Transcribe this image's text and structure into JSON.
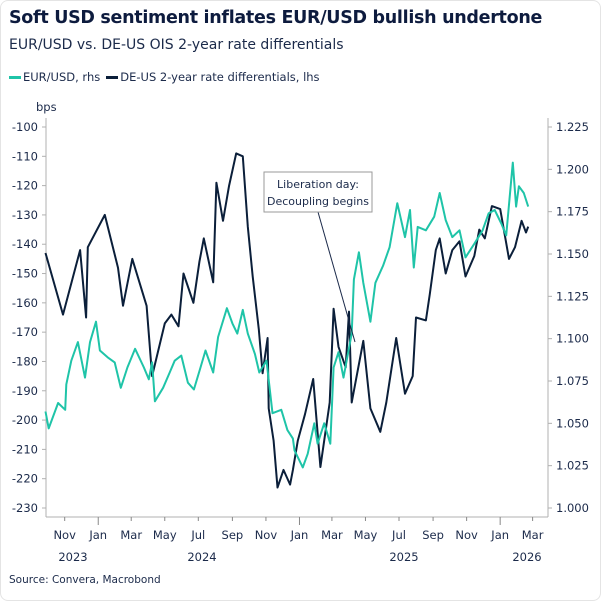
{
  "title": "Soft USD sentiment inflates EUR/USD bullish undertone",
  "subtitle": "EUR/USD vs. DE-US OIS 2-year rate differentials",
  "source": "Source: Convera, Macrobond",
  "colors": {
    "eurusd": "#1fc4a8",
    "diff": "#0b1f3a",
    "axis": "#b0b0b0"
  },
  "chart_data": {
    "type": "line",
    "title": "Soft USD sentiment inflates EUR/USD bullish undertone",
    "subtitle": "EUR/USD vs. DE-US OIS 2-year rate differentials",
    "legend_position": "top-left",
    "grid": false,
    "left_axis": {
      "unit_label": "bps",
      "ylim": [
        -230,
        -100
      ],
      "ticks": [
        "-100",
        "-110",
        "-120",
        "-130",
        "-140",
        "-150",
        "-160",
        "-170",
        "-180",
        "-190",
        "-200",
        "-210",
        "-220",
        "-230"
      ]
    },
    "right_axis": {
      "ylim": [
        1.0,
        1.225
      ],
      "ticks": [
        "1.225",
        "1.200",
        "1.175",
        "1.150",
        "1.125",
        "1.100",
        "1.075",
        "1.050",
        "1.025",
        "1.000"
      ]
    },
    "xlim": [
      "2023-09-28",
      "2026-03-29"
    ],
    "x_ticks": [
      {
        "date": "2023-11-01",
        "label": "Nov"
      },
      {
        "date": "2024-01-01",
        "label": "Jan"
      },
      {
        "date": "2024-03-01",
        "label": "Mar"
      },
      {
        "date": "2024-05-01",
        "label": "May"
      },
      {
        "date": "2024-07-01",
        "label": "Jul"
      },
      {
        "date": "2024-09-01",
        "label": "Sep"
      },
      {
        "date": "2024-11-01",
        "label": "Nov"
      },
      {
        "date": "2025-01-01",
        "label": "Jan"
      },
      {
        "date": "2025-03-01",
        "label": "Mar"
      },
      {
        "date": "2025-05-01",
        "label": "May"
      },
      {
        "date": "2025-07-01",
        "label": "Jul"
      },
      {
        "date": "2025-09-01",
        "label": "Sep"
      },
      {
        "date": "2025-11-01",
        "label": "Nov"
      },
      {
        "date": "2026-01-01",
        "label": "Jan"
      },
      {
        "date": "2026-03-01",
        "label": "Mar"
      }
    ],
    "year_labels": [
      "2023",
      "2024",
      "2025",
      "2026"
    ],
    "annotation": {
      "lines": [
        "Liberation day:",
        "Decoupling begins"
      ],
      "date": "2025-04-02"
    },
    "series": [
      {
        "name": "EUR/USD, rhs",
        "axis": "right",
        "x": [
          "2023-09-27",
          "2023-10-03",
          "2023-10-20",
          "2023-11-02",
          "2023-11-04",
          "2023-11-13",
          "2023-11-25",
          "2023-12-08",
          "2023-12-17",
          "2023-12-28",
          "2024-01-04",
          "2024-01-18",
          "2024-01-31",
          "2024-02-11",
          "2024-02-23",
          "2024-03-08",
          "2024-03-24",
          "2024-04-02",
          "2024-04-08",
          "2024-04-13",
          "2024-04-28",
          "2024-05-10",
          "2024-05-19",
          "2024-05-31",
          "2024-06-12",
          "2024-06-23",
          "2024-07-05",
          "2024-07-14",
          "2024-07-28",
          "2024-08-06",
          "2024-08-22",
          "2024-09-01",
          "2024-09-10",
          "2024-09-20",
          "2024-09-29",
          "2024-10-12",
          "2024-10-20",
          "2024-11-02",
          "2024-11-08",
          "2024-11-13",
          "2024-11-29",
          "2024-12-10",
          "2024-12-20",
          "2024-12-23",
          "2025-01-07",
          "2025-01-16",
          "2025-01-28",
          "2025-02-03",
          "2025-02-15",
          "2025-02-26",
          "2025-03-04",
          "2025-03-13",
          "2025-03-22",
          "2025-04-06",
          "2025-04-10",
          "2025-04-19",
          "2025-04-27",
          "2025-05-10",
          "2025-05-19",
          "2025-06-02",
          "2025-06-14",
          "2025-06-28",
          "2025-07-12",
          "2025-07-21",
          "2025-07-28",
          "2025-08-04",
          "2025-08-19",
          "2025-09-03",
          "2025-09-13",
          "2025-09-24",
          "2025-10-06",
          "2025-10-19",
          "2025-10-30",
          "2025-11-15",
          "2025-11-30",
          "2025-12-11",
          "2025-12-22",
          "2026-01-03",
          "2026-01-12",
          "2026-01-24",
          "2026-01-30",
          "2026-02-04",
          "2026-02-13",
          "2026-02-21"
        ],
        "values": [
          1.057,
          1.047,
          1.062,
          1.058,
          1.073,
          1.087,
          1.098,
          1.077,
          1.098,
          1.11,
          1.093,
          1.089,
          1.086,
          1.071,
          1.083,
          1.094,
          1.083,
          1.076,
          1.086,
          1.063,
          1.071,
          1.08,
          1.087,
          1.09,
          1.074,
          1.07,
          1.083,
          1.093,
          1.08,
          1.101,
          1.118,
          1.109,
          1.103,
          1.117,
          1.103,
          1.091,
          1.08,
          1.087,
          1.07,
          1.056,
          1.058,
          1.046,
          1.041,
          1.034,
          1.024,
          1.032,
          1.05,
          1.038,
          1.05,
          1.038,
          1.083,
          1.092,
          1.077,
          1.103,
          1.135,
          1.151,
          1.133,
          1.11,
          1.133,
          1.143,
          1.154,
          1.18,
          1.16,
          1.176,
          1.142,
          1.166,
          1.164,
          1.172,
          1.186,
          1.17,
          1.16,
          1.164,
          1.148,
          1.156,
          1.164,
          1.174,
          1.176,
          1.168,
          1.161,
          1.204,
          1.178,
          1.19,
          1.186,
          1.178
        ]
      },
      {
        "name": "DE-US 2-year rate differentials, lhs",
        "axis": "left",
        "x": [
          "2023-09-27",
          "2023-10-29",
          "2023-11-29",
          "2023-12-10",
          "2023-12-13",
          "2024-01-13",
          "2024-02-06",
          "2024-02-15",
          "2024-03-03",
          "2024-03-29",
          "2024-04-08",
          "2024-05-01",
          "2024-05-13",
          "2024-05-26",
          "2024-06-04",
          "2024-06-22",
          "2024-07-03",
          "2024-07-11",
          "2024-07-28",
          "2024-08-03",
          "2024-08-15",
          "2024-08-26",
          "2024-09-08",
          "2024-09-20",
          "2024-09-29",
          "2024-10-08",
          "2024-10-19",
          "2024-10-26",
          "2024-11-04",
          "2024-11-06",
          "2024-11-15",
          "2024-11-22",
          "2024-12-03",
          "2024-12-15",
          "2024-12-20",
          "2024-12-29",
          "2025-01-11",
          "2025-01-26",
          "2025-02-08",
          "2025-02-25",
          "2025-03-04",
          "2025-03-13",
          "2025-03-26",
          "2025-04-01",
          "2025-04-06",
          "2025-04-27",
          "2025-05-10",
          "2025-05-28",
          "2025-06-08",
          "2025-06-26",
          "2025-07-12",
          "2025-07-26",
          "2025-08-01",
          "2025-08-19",
          "2025-08-26",
          "2025-09-06",
          "2025-09-13",
          "2025-09-24",
          "2025-10-06",
          "2025-10-19",
          "2025-10-30",
          "2025-11-15",
          "2025-11-24",
          "2025-12-04",
          "2025-12-17",
          "2026-01-01",
          "2026-01-17",
          "2026-01-28",
          "2026-02-09",
          "2026-02-17",
          "2026-02-21"
        ],
        "values": [
          -143,
          -164,
          -142,
          -165,
          -141,
          -130,
          -148,
          -161,
          -145,
          -161,
          -185,
          -167,
          -164,
          -168,
          -150,
          -160,
          -146,
          -138,
          -153,
          -119,
          -132,
          -120,
          -109,
          -110,
          -134,
          -151,
          -169,
          -184,
          -172,
          -196,
          -207,
          -223,
          -217,
          -222,
          -217,
          -207,
          -198,
          -186,
          -216,
          -194,
          -162,
          -175,
          -182,
          -163,
          -194,
          -173,
          -196,
          -204,
          -194,
          -172,
          -191,
          -185,
          -165,
          -166,
          -157,
          -142,
          -138,
          -150,
          -142,
          -139,
          -151,
          -144,
          -135,
          -138,
          -127,
          -128,
          -145,
          -141,
          -132,
          -136,
          -134
        ]
      }
    ]
  }
}
